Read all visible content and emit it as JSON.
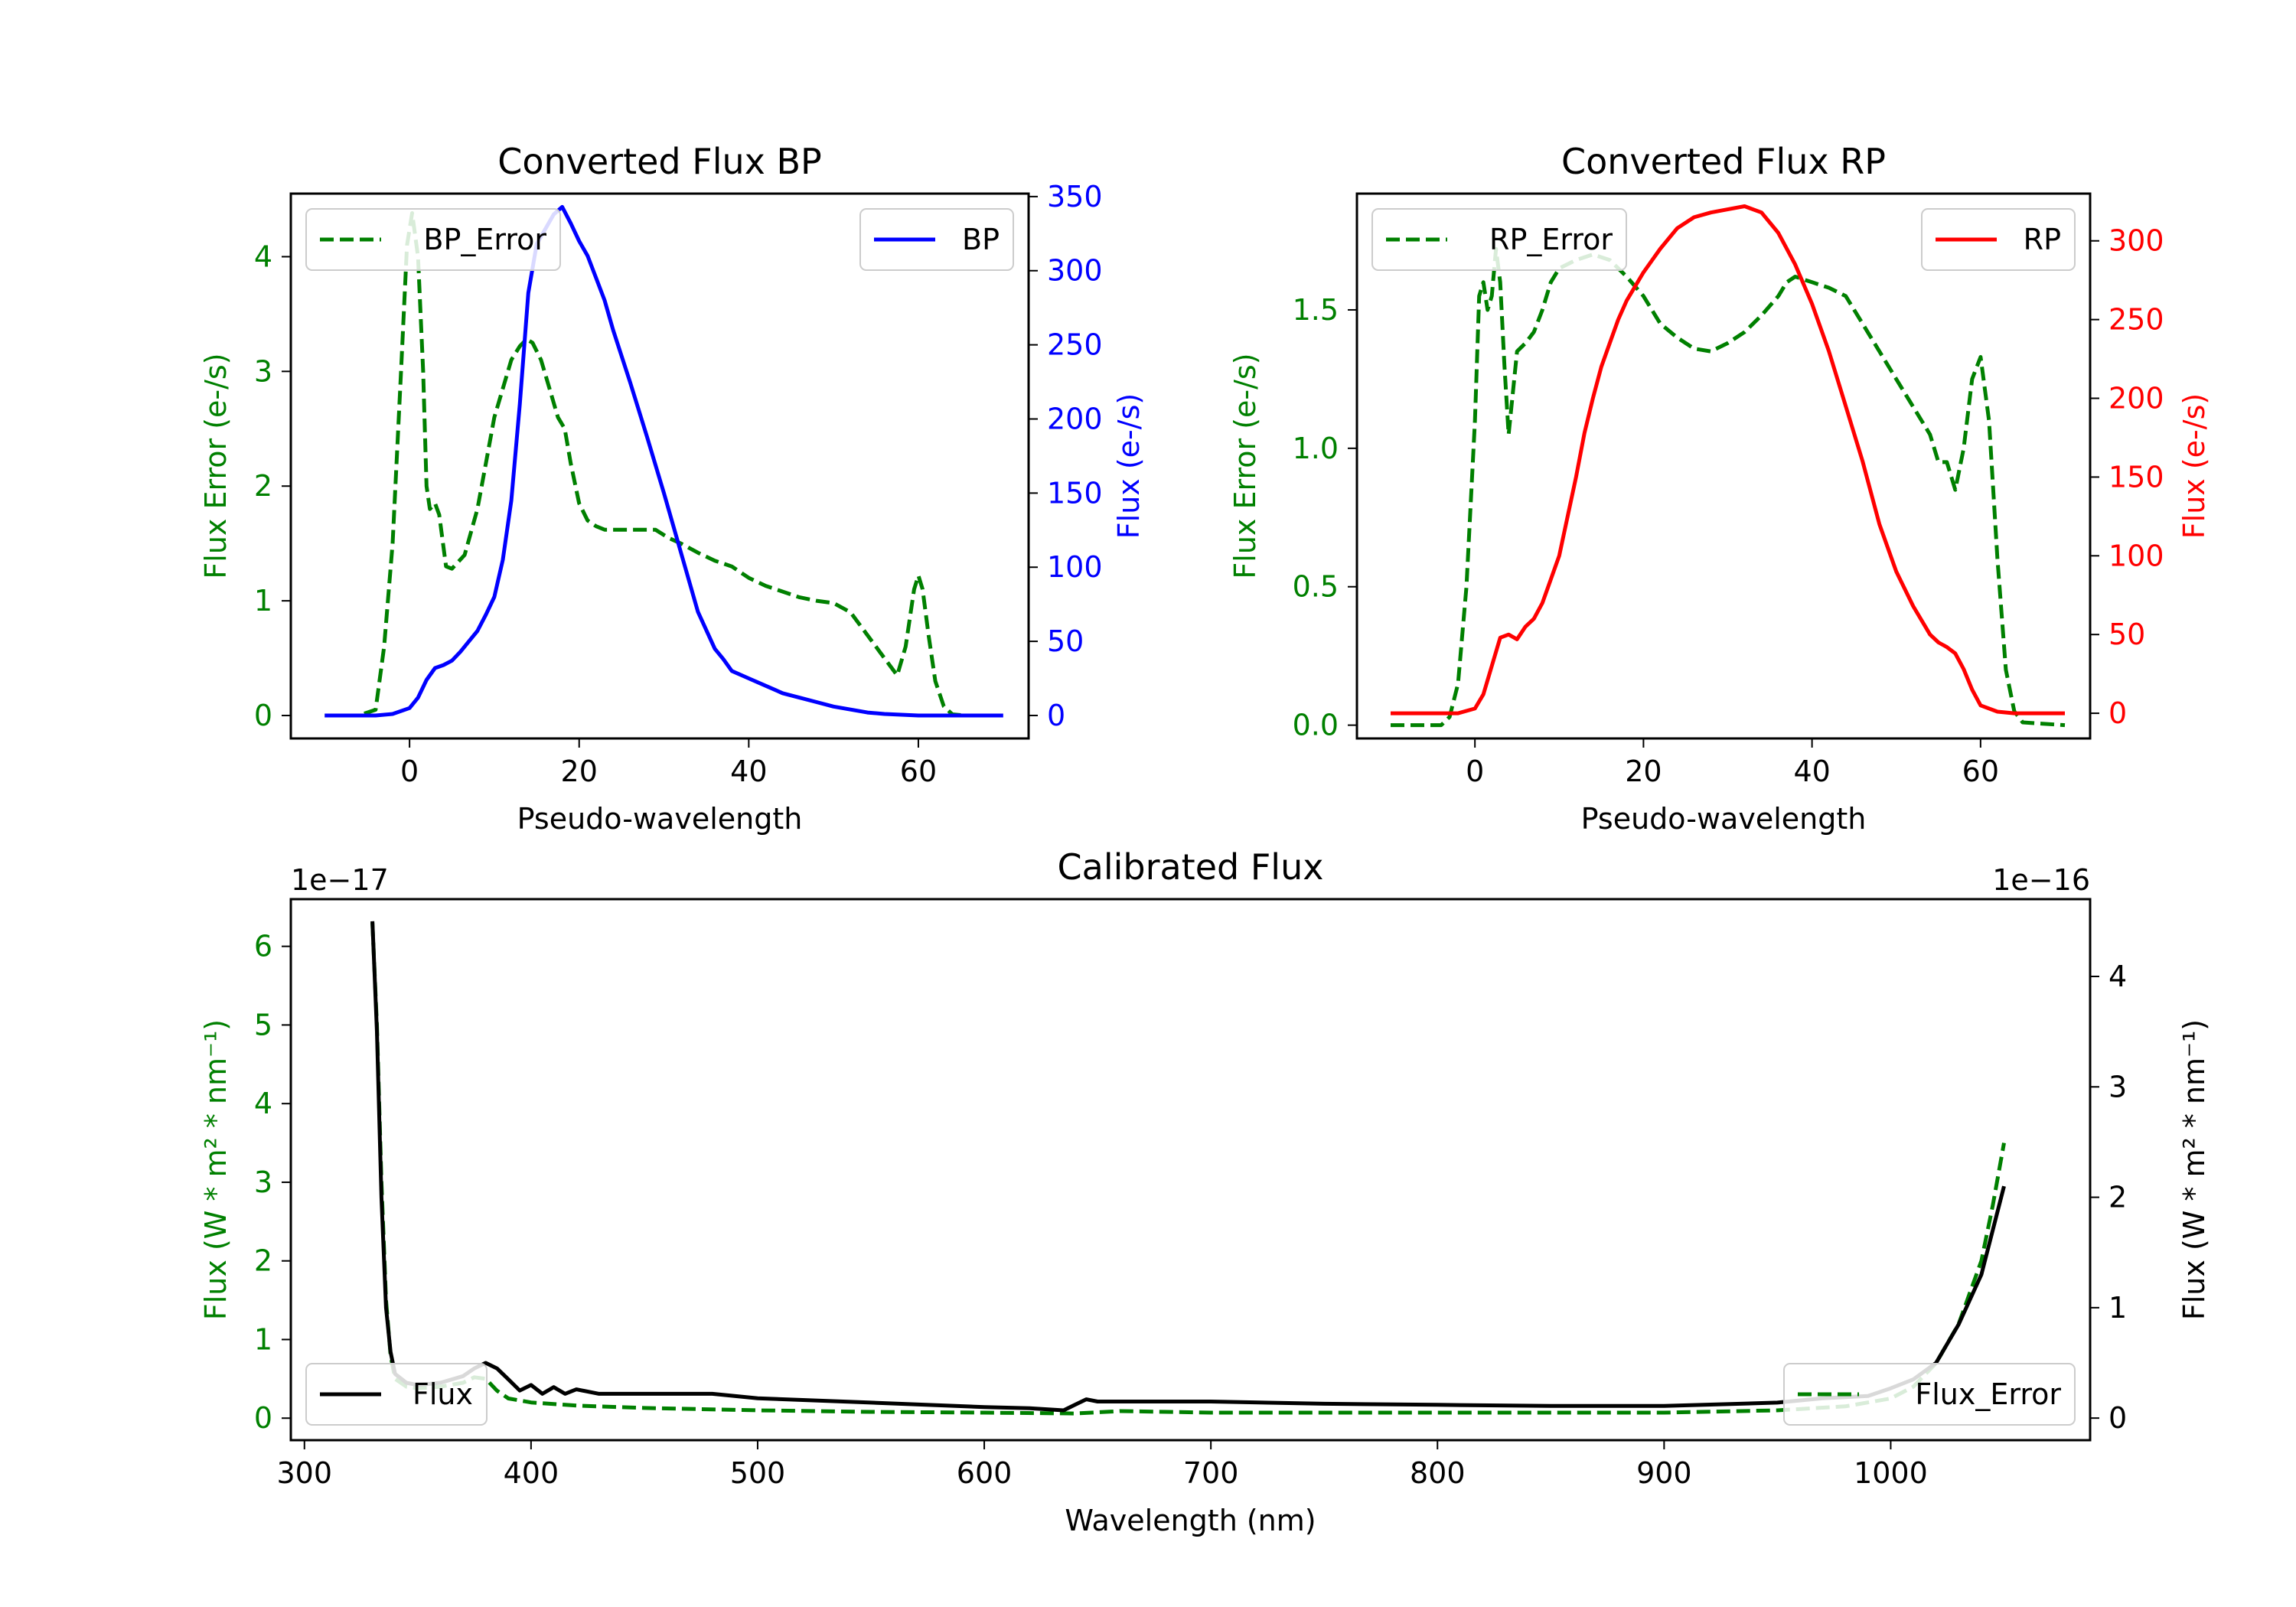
{
  "chart_data": [
    {
      "type": "line",
      "title": "Converted Flux BP",
      "xlabel": "Pseudo-wavelength",
      "ylabel_left": "Flux Error (e-/s)",
      "ylabel_right": "Flux (e-/s)",
      "xlim": [
        -14,
        73
      ],
      "ylim_left": [
        -0.2,
        4.55
      ],
      "ylim_right": [
        -15.5,
        352
      ],
      "xticks": [
        0,
        20,
        40,
        60
      ],
      "yticks_left": [
        0,
        1,
        2,
        3,
        4
      ],
      "yticks_right": [
        0,
        50,
        100,
        150,
        200,
        250,
        300,
        350
      ],
      "left_axis_color": "#008000",
      "right_axis_color": "#0000ff",
      "series": [
        {
          "name": "BP_Error",
          "axis": "left",
          "style": "dashed",
          "color": "#008000",
          "x": [
            -10,
            -6,
            -4,
            -3,
            -2,
            -1,
            -0.3,
            0.3,
            1,
            1.6,
            2,
            2.4,
            3,
            3.5,
            4.3,
            5,
            6.5,
            8,
            9,
            10,
            11,
            12,
            13,
            13.8,
            14.5,
            15.5,
            16.5,
            17.5,
            18.3,
            19,
            20,
            21,
            22,
            23,
            25,
            27,
            29,
            30.5,
            32,
            34,
            36,
            38,
            40,
            42,
            44,
            46,
            48,
            50,
            52,
            54,
            55.5,
            56.5,
            57.5,
            58.5,
            59.5,
            60,
            60.5,
            61.2,
            62,
            63,
            64,
            65.5,
            70
          ],
          "y": [
            0,
            0,
            0.05,
            0.6,
            1.5,
            3.0,
            4.1,
            4.38,
            4.0,
            3.0,
            2.0,
            1.8,
            1.85,
            1.75,
            1.3,
            1.28,
            1.4,
            1.8,
            2.2,
            2.6,
            2.85,
            3.1,
            3.22,
            3.28,
            3.25,
            3.1,
            2.85,
            2.6,
            2.5,
            2.2,
            1.85,
            1.7,
            1.65,
            1.62,
            1.62,
            1.62,
            1.62,
            1.55,
            1.5,
            1.42,
            1.35,
            1.3,
            1.2,
            1.13,
            1.08,
            1.03,
            1.0,
            0.98,
            0.9,
            0.7,
            0.55,
            0.45,
            0.35,
            0.6,
            1.1,
            1.22,
            1.1,
            0.7,
            0.3,
            0.08,
            0.01,
            0,
            0
          ]
        },
        {
          "name": "BP",
          "axis": "right",
          "style": "solid",
          "color": "#0000ff",
          "x": [
            -10,
            -4,
            -2,
            0,
            1,
            2,
            3,
            4,
            5,
            6,
            7,
            8,
            9,
            10,
            11,
            12,
            13,
            14,
            15,
            16,
            17,
            18,
            19,
            20,
            21,
            22,
            23,
            24,
            26,
            28,
            30,
            32,
            34,
            36,
            37,
            38,
            40,
            42,
            44,
            46,
            48,
            50,
            52,
            54,
            56,
            58,
            60,
            62,
            64,
            66,
            70
          ],
          "y": [
            0,
            0,
            1,
            5,
            12,
            24,
            32,
            34,
            37,
            43,
            50,
            57,
            68,
            80,
            105,
            145,
            210,
            285,
            318,
            328,
            338,
            343,
            332,
            320,
            310,
            295,
            280,
            260,
            225,
            188,
            150,
            110,
            70,
            45,
            38,
            30,
            25,
            20,
            15,
            12,
            9,
            6,
            4,
            2,
            1,
            0.5,
            0,
            0,
            0,
            0,
            0
          ]
        }
      ],
      "legend": [
        {
          "label": "BP_Error",
          "position": "upper-left"
        },
        {
          "label": "BP",
          "position": "upper-right"
        }
      ]
    },
    {
      "type": "line",
      "title": "Converted Flux RP",
      "xlabel": "Pseudo-wavelength",
      "ylabel_left": "Flux Error (e-/s)",
      "ylabel_right": "Flux (e-/s)",
      "xlim": [
        -14,
        73
      ],
      "ylim_left": [
        -0.048,
        1.92
      ],
      "ylim_right": [
        -16,
        330
      ],
      "xticks": [
        0,
        20,
        40,
        60
      ],
      "yticks_left": [
        0.0,
        0.5,
        1.0,
        1.5
      ],
      "yticks_right": [
        0,
        50,
        100,
        150,
        200,
        250,
        300
      ],
      "left_axis_color": "#008000",
      "right_axis_color": "#ff0000",
      "series": [
        {
          "name": "RP_Error",
          "axis": "left",
          "style": "dashed",
          "color": "#008000",
          "x": [
            -10,
            -4,
            -3,
            -2,
            -1,
            0,
            0.5,
            1,
            1.5,
            2,
            2.5,
            3,
            3.5,
            4,
            4.5,
            5,
            6,
            7,
            8,
            9,
            10,
            12,
            14,
            16,
            18,
            20,
            22,
            24,
            26,
            28,
            30,
            32,
            34,
            36,
            37,
            38,
            40,
            42,
            44,
            46,
            48,
            50,
            52,
            54,
            55,
            56,
            57,
            58,
            59,
            60,
            61,
            62,
            63,
            64,
            65,
            70
          ],
          "y": [
            0,
            0,
            0.03,
            0.15,
            0.5,
            1.1,
            1.55,
            1.6,
            1.5,
            1.55,
            1.72,
            1.6,
            1.3,
            1.05,
            1.2,
            1.35,
            1.38,
            1.42,
            1.5,
            1.6,
            1.65,
            1.68,
            1.7,
            1.68,
            1.62,
            1.55,
            1.45,
            1.4,
            1.36,
            1.35,
            1.38,
            1.42,
            1.48,
            1.55,
            1.6,
            1.62,
            1.6,
            1.58,
            1.55,
            1.45,
            1.35,
            1.25,
            1.15,
            1.05,
            0.95,
            0.95,
            0.85,
            1.0,
            1.25,
            1.33,
            1.1,
            0.6,
            0.2,
            0.05,
            0.01,
            0
          ]
        },
        {
          "name": "RP",
          "axis": "right",
          "style": "solid",
          "color": "#ff0000",
          "x": [
            -10,
            -2,
            0,
            1,
            2,
            3,
            4,
            5,
            6,
            7,
            8,
            9,
            10,
            11,
            12,
            13,
            14,
            15,
            16,
            17,
            18,
            20,
            22,
            24,
            26,
            28,
            30,
            32,
            34,
            36,
            38,
            40,
            42,
            44,
            46,
            48,
            50,
            52,
            54,
            55,
            56,
            57,
            58,
            59,
            60,
            62,
            64,
            66,
            70
          ],
          "y": [
            0,
            0,
            3,
            12,
            30,
            48,
            50,
            47,
            55,
            60,
            70,
            85,
            100,
            125,
            150,
            178,
            200,
            220,
            235,
            250,
            262,
            280,
            295,
            308,
            315,
            318,
            320,
            322,
            318,
            305,
            285,
            260,
            230,
            195,
            160,
            120,
            90,
            68,
            50,
            45,
            42,
            38,
            28,
            15,
            5,
            1,
            0,
            0,
            0
          ]
        }
      ],
      "legend": [
        {
          "label": "RP_Error",
          "position": "upper-left"
        },
        {
          "label": "RP",
          "position": "upper-right"
        }
      ]
    },
    {
      "type": "line",
      "title": "Calibrated Flux",
      "xlabel": "Wavelength (nm)",
      "ylabel_left": "Flux (W * m² * nm⁻¹)",
      "ylabel_right": "Flux (W * m² * nm⁻¹)",
      "left_offset_label": "1e−17",
      "right_offset_label": "1e−16",
      "xlim": [
        294,
        1088
      ],
      "ylim_left": [
        -0.28,
        6.6
      ],
      "ylim_right": [
        -0.2,
        4.7
      ],
      "xticks": [
        300,
        400,
        500,
        600,
        700,
        800,
        900,
        1000
      ],
      "yticks_left": [
        0,
        1,
        2,
        3,
        4,
        5,
        6
      ],
      "yticks_right": [
        0,
        1,
        2,
        3,
        4
      ],
      "left_axis_color": "#008000",
      "right_axis_color": "#000000",
      "series": [
        {
          "name": "Flux_Error",
          "axis": "left",
          "style": "dashed",
          "color": "#008000",
          "x": [
            330,
            332,
            334,
            336,
            338,
            340,
            345,
            350,
            360,
            370,
            375,
            380,
            385,
            390,
            400,
            420,
            450,
            500,
            550,
            600,
            640,
            660,
            700,
            750,
            800,
            850,
            900,
            950,
            980,
            1000,
            1010,
            1020,
            1030,
            1040,
            1045,
            1050
          ],
          "y": [
            6.3,
            5.0,
            3.0,
            1.5,
            0.8,
            0.5,
            0.4,
            0.38,
            0.4,
            0.45,
            0.52,
            0.5,
            0.35,
            0.25,
            0.2,
            0.16,
            0.13,
            0.1,
            0.08,
            0.07,
            0.06,
            0.09,
            0.07,
            0.07,
            0.07,
            0.07,
            0.07,
            0.1,
            0.15,
            0.25,
            0.4,
            0.7,
            1.2,
            2.0,
            2.7,
            3.5
          ]
        },
        {
          "name": "Flux",
          "axis": "right",
          "style": "solid",
          "color": "#000000",
          "x": [
            330,
            332,
            334,
            336,
            338,
            340,
            345,
            350,
            360,
            370,
            375,
            380,
            385,
            390,
            395,
            400,
            405,
            410,
            415,
            420,
            430,
            450,
            480,
            500,
            550,
            600,
            620,
            635,
            640,
            645,
            650,
            660,
            700,
            750,
            800,
            850,
            900,
            950,
            970,
            990,
            1000,
            1010,
            1020,
            1030,
            1040,
            1045,
            1050
          ],
          "y": [
            4.5,
            3.5,
            2.0,
            1.0,
            0.6,
            0.4,
            0.32,
            0.3,
            0.32,
            0.38,
            0.45,
            0.5,
            0.45,
            0.35,
            0.25,
            0.3,
            0.22,
            0.28,
            0.22,
            0.26,
            0.22,
            0.22,
            0.22,
            0.18,
            0.14,
            0.1,
            0.09,
            0.07,
            0.12,
            0.17,
            0.15,
            0.15,
            0.15,
            0.13,
            0.12,
            0.11,
            0.11,
            0.14,
            0.18,
            0.2,
            0.27,
            0.35,
            0.5,
            0.85,
            1.3,
            1.7,
            2.1
          ]
        }
      ],
      "legend": [
        {
          "label": "Flux",
          "position": "lower-left"
        },
        {
          "label": "Flux_Error",
          "position": "lower-right"
        }
      ]
    }
  ]
}
